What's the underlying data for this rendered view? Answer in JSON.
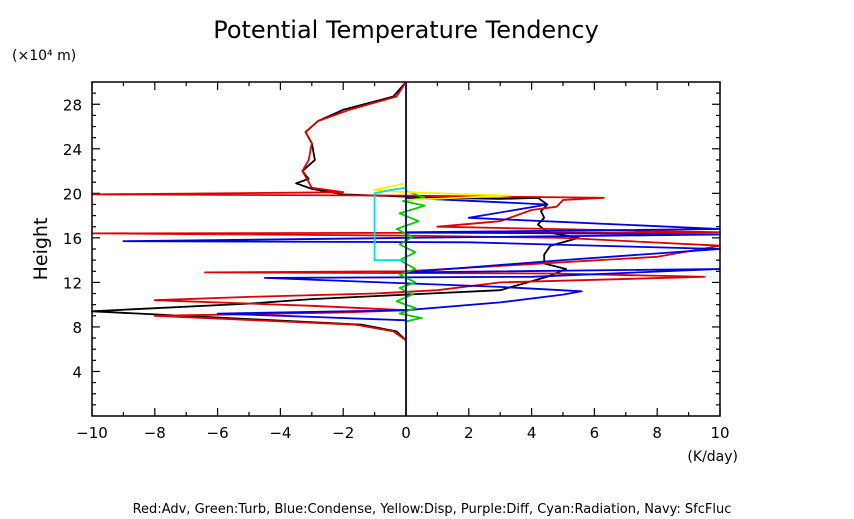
{
  "chart_data": {
    "type": "line",
    "title": "Potential Temperature Tendency",
    "ylabel": "Height",
    "yunit": "(×10⁴ m)",
    "xunit": "(K/day)",
    "xlim": [
      -10,
      10
    ],
    "ylim": [
      0,
      30
    ],
    "xticks": [
      -10,
      -8,
      -6,
      -4,
      -2,
      0,
      2,
      4,
      6,
      8,
      10
    ],
    "xtick_labels": [
      "−10",
      "−8",
      "−6",
      "−4",
      "−2",
      "0",
      "2",
      "4",
      "6",
      "8",
      "10"
    ],
    "yticks": [
      4,
      8,
      12,
      16,
      20,
      24,
      28
    ],
    "ytick_labels": [
      "4",
      "8",
      "12",
      "16",
      "20",
      "24",
      "28"
    ],
    "legend_text": "Red:Adv, Green:Turb, Blue:Condense, Yellow:Disp, Purple:Diff, Cyan:Radiation, Navy: SfcFluc",
    "series": [
      {
        "color": "#000000",
        "points": [
          [
            0,
            6.8
          ],
          [
            -0.3,
            7.6
          ],
          [
            -1.4,
            8.2
          ],
          [
            -3.5,
            8.5
          ],
          [
            -10,
            9.4
          ],
          [
            -5,
            10.1
          ],
          [
            -3,
            10.5
          ],
          [
            0,
            10.9
          ],
          [
            3,
            11.3
          ],
          [
            4.5,
            12.5
          ],
          [
            5.1,
            13.2
          ],
          [
            4.4,
            13.7
          ],
          [
            4.4,
            14.5
          ],
          [
            4.6,
            15.3
          ],
          [
            5.5,
            16.0
          ],
          [
            4.5,
            16.5
          ],
          [
            4.2,
            17.2
          ],
          [
            4.4,
            17.8
          ],
          [
            4.3,
            18.4
          ],
          [
            4.5,
            19.0
          ],
          [
            4.2,
            19.6
          ],
          [
            3,
            19.5
          ],
          [
            1,
            19.6
          ],
          [
            -2,
            19.9
          ],
          [
            -3,
            20.4
          ],
          [
            -3.5,
            20.9
          ],
          [
            -3.1,
            21.3
          ],
          [
            -3.3,
            22.0
          ],
          [
            -2.9,
            23.0
          ],
          [
            -3,
            24.5
          ],
          [
            -3.2,
            25.5
          ],
          [
            -2.8,
            26.5
          ],
          [
            -2,
            27.5
          ],
          [
            -0.4,
            28.7
          ],
          [
            0,
            30
          ]
        ]
      },
      {
        "color": "#dd0000",
        "points": [
          [
            0,
            6.8
          ],
          [
            -0.4,
            7.6
          ],
          [
            -1.6,
            8.2
          ],
          [
            -4,
            8.5
          ],
          [
            -8,
            9.0
          ],
          [
            -2,
            9.3
          ],
          [
            0,
            9.5
          ],
          [
            -3,
            9.9
          ],
          [
            -8,
            10.4
          ],
          [
            -5,
            10.7
          ],
          [
            -1,
            11.0
          ],
          [
            1,
            11.3
          ],
          [
            3,
            12.0
          ],
          [
            9.5,
            12.5
          ],
          [
            4.7,
            12.8
          ],
          [
            -6.4,
            12.9
          ],
          [
            0,
            13.0
          ],
          [
            8,
            14.3
          ],
          [
            10,
            15.3
          ],
          [
            5,
            16.0
          ],
          [
            0,
            16.2
          ],
          [
            -10,
            16.4
          ],
          [
            10,
            16.5
          ],
          [
            1,
            17.0
          ],
          [
            3,
            17.5
          ],
          [
            4,
            18.5
          ],
          [
            4.8,
            18.8
          ],
          [
            5,
            19.4
          ],
          [
            6.3,
            19.6
          ],
          [
            3,
            19.7
          ],
          [
            0,
            19.8
          ],
          [
            -10,
            19.9
          ],
          [
            -2,
            20.1
          ],
          [
            -3,
            20.5
          ],
          [
            -3.1,
            21.0
          ],
          [
            -3.3,
            22.0
          ],
          [
            -3.1,
            23.0
          ],
          [
            -3,
            24.5
          ],
          [
            -3.2,
            25.5
          ],
          [
            -2.8,
            26.5
          ],
          [
            -1.8,
            27.5
          ],
          [
            -0.3,
            28.7
          ],
          [
            0,
            30
          ]
        ]
      },
      {
        "color": "#0000dd",
        "points": [
          [
            0,
            8.6
          ],
          [
            -3,
            8.9
          ],
          [
            -6,
            9.2
          ],
          [
            0,
            9.5
          ],
          [
            3,
            10.2
          ],
          [
            5,
            10.9
          ],
          [
            5.6,
            11.2
          ],
          [
            3,
            11.6
          ],
          [
            -4.5,
            12.4
          ],
          [
            4,
            12.5
          ],
          [
            10,
            13.2
          ],
          [
            0,
            12.9
          ],
          [
            5,
            14.0
          ],
          [
            10,
            15.0
          ],
          [
            2,
            15.6
          ],
          [
            -9,
            15.7
          ],
          [
            0,
            16.0
          ],
          [
            10,
            16.3
          ],
          [
            0,
            16.5
          ],
          [
            10,
            16.8
          ],
          [
            2,
            17.8
          ],
          [
            4.5,
            19.0
          ],
          [
            0,
            19.6
          ]
        ]
      },
      {
        "color": "#00cc00",
        "points": [
          [
            0,
            8.5
          ],
          [
            0.5,
            8.8
          ],
          [
            -0.2,
            9.2
          ],
          [
            0.3,
            9.7
          ],
          [
            -0.3,
            10.3
          ],
          [
            0.2,
            10.9
          ],
          [
            -0.2,
            11.5
          ],
          [
            0.3,
            12.0
          ],
          [
            -0.2,
            12.7
          ],
          [
            0.3,
            13.2
          ],
          [
            -0.2,
            14.0
          ],
          [
            0.3,
            14.7
          ],
          [
            -0.2,
            15.4
          ],
          [
            0.2,
            16.1
          ],
          [
            -0.3,
            16.8
          ],
          [
            0.4,
            17.5
          ],
          [
            -0.2,
            18.2
          ],
          [
            0.6,
            18.9
          ],
          [
            -0.1,
            19.3
          ],
          [
            0.6,
            19.6
          ],
          [
            0.2,
            20.0
          ],
          [
            0,
            20.2
          ]
        ]
      },
      {
        "color": "#ffee00",
        "points": [
          [
            0,
            20.9
          ],
          [
            -1,
            20.3
          ],
          [
            0,
            20.1
          ],
          [
            2,
            19.9
          ],
          [
            3.3,
            19.8
          ],
          [
            0,
            19.4
          ]
        ]
      },
      {
        "color": "#00dddd",
        "points": [
          [
            0,
            14.0
          ],
          [
            -1,
            14.0
          ],
          [
            -1,
            20.0
          ],
          [
            -0.5,
            20.3
          ],
          [
            0,
            20.5
          ]
        ]
      },
      {
        "color": "#000066",
        "points": [
          [
            0,
            0
          ],
          [
            0,
            30
          ]
        ]
      }
    ]
  }
}
